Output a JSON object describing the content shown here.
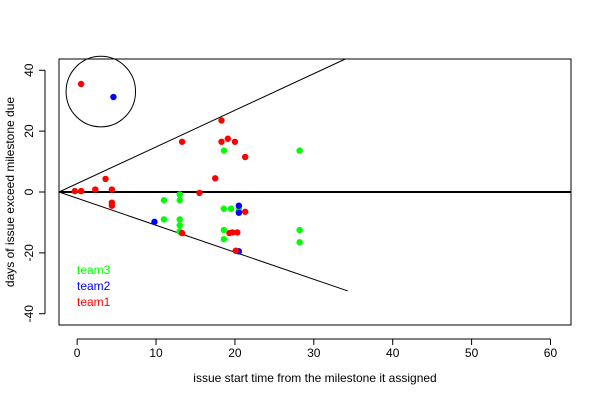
{
  "chart_data": {
    "type": "scatter",
    "title": "",
    "xlabel": "issue start time from the milestone it assigned",
    "ylabel": "days of issue exceed milestone due",
    "xlim": [
      -2.3,
      62.6
    ],
    "ylim": [
      -43.7,
      43.7
    ],
    "xticks": [
      0,
      10,
      20,
      30,
      40,
      50,
      60
    ],
    "yticks": [
      -40,
      -20,
      0,
      20,
      40
    ],
    "grid": false,
    "legend": {
      "placement": "bottom-left",
      "entries": [
        {
          "label": "team3",
          "color": "#00ff00"
        },
        {
          "label": "team2",
          "color": "#0000ff"
        },
        {
          "label": "team1",
          "color": "#ff0000"
        }
      ]
    },
    "reference_lines": [
      {
        "type": "hline",
        "y": 0
      },
      {
        "type": "segment",
        "from": [
          -2.3,
          0
        ],
        "to": [
          34,
          43.7
        ]
      },
      {
        "type": "segment",
        "from": [
          -2.3,
          0
        ],
        "to": [
          34.3,
          -32.5
        ]
      }
    ],
    "highlight_circle": {
      "center": [
        3,
        33
      ],
      "radius_x": 4.4,
      "radius_y": 11.6
    },
    "series": [
      {
        "name": "team3",
        "color": "#00ff00",
        "points": [
          [
            0.5,
            0.3
          ],
          [
            13,
            -0.8
          ],
          [
            11,
            -2.7
          ],
          [
            13,
            -2.7
          ],
          [
            11,
            -9
          ],
          [
            13,
            -9
          ],
          [
            13,
            -11
          ],
          [
            13,
            -13
          ],
          [
            18.6,
            13.6
          ],
          [
            18.6,
            -5.5
          ],
          [
            19.5,
            -5.5
          ],
          [
            20.5,
            -5.5
          ],
          [
            18.6,
            -12.5
          ],
          [
            18.6,
            -15.5
          ],
          [
            20.5,
            -6.5
          ],
          [
            28.2,
            13.6
          ],
          [
            28.2,
            -12.5
          ],
          [
            28.2,
            -16.5
          ],
          [
            20.5,
            -19.5
          ]
        ]
      },
      {
        "name": "team2",
        "color": "#0000ff",
        "points": [
          [
            4.6,
            31.2
          ],
          [
            9.8,
            -9.8
          ],
          [
            20.5,
            -4.5
          ],
          [
            20.5,
            -6.8
          ],
          [
            20.5,
            -19.5
          ]
        ]
      },
      {
        "name": "team1",
        "color": "#ff0000",
        "points": [
          [
            0.5,
            35.5
          ],
          [
            -0.3,
            0.3
          ],
          [
            0.5,
            0.3
          ],
          [
            2.3,
            0.8
          ],
          [
            3.6,
            4.3
          ],
          [
            4.4,
            0.8
          ],
          [
            4.4,
            -3.5
          ],
          [
            4.4,
            -4.5
          ],
          [
            13.3,
            16.5
          ],
          [
            13.3,
            -13.5
          ],
          [
            15.5,
            -0.3
          ],
          [
            17.5,
            4.5
          ],
          [
            18.3,
            23.5
          ],
          [
            18.3,
            16.5
          ],
          [
            19.1,
            17.5
          ],
          [
            20,
            16.5
          ],
          [
            21.3,
            11.5
          ],
          [
            19.3,
            -13.5
          ],
          [
            19.7,
            -13.3
          ],
          [
            20.3,
            -13.3
          ],
          [
            21.3,
            -6.5
          ],
          [
            20.1,
            -19.3
          ]
        ]
      }
    ]
  }
}
